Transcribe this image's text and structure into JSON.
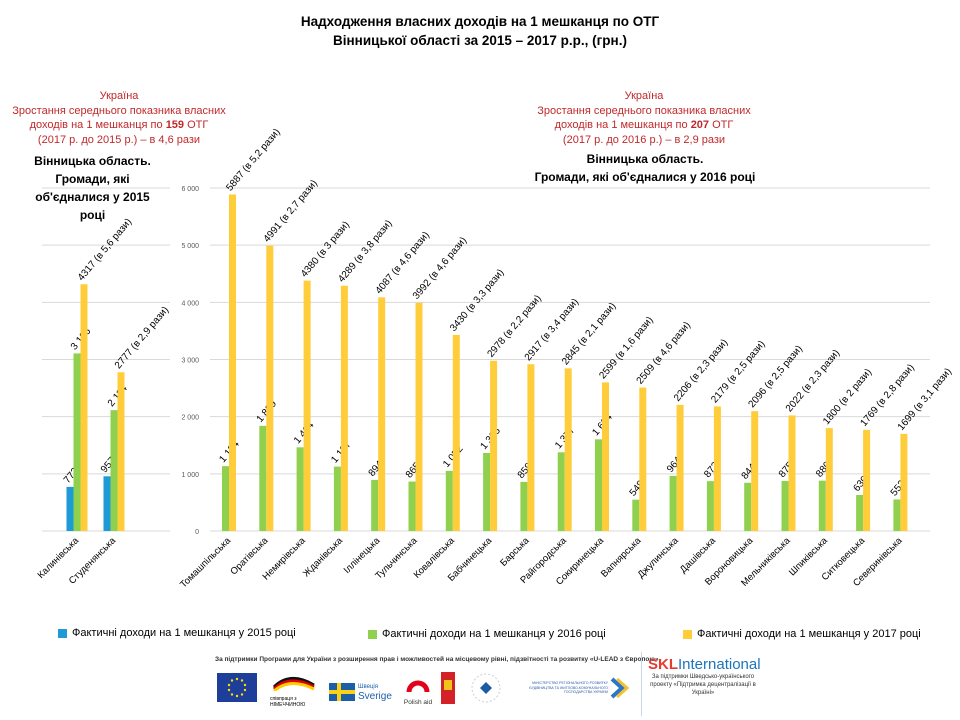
{
  "title": {
    "line1": "Надходження власних доходів на 1 мешканця по ОТГ",
    "line2": "Вінницької області за 2015 – 2017 р.р., (грн.)"
  },
  "notes": {
    "left": {
      "line1": "Україна",
      "line2": "Зростання середнього показника власних",
      "line3_pre": "доходів на 1 мешканця по ",
      "line3_bold": "159",
      "line3_post": " ОТГ",
      "line4": "(2017 р. до 2015 р.) – в 4,6 рази"
    },
    "right": {
      "line1": "Україна",
      "line2": "Зростання середнього показника власних",
      "line3_pre": "доходів на 1 мешканця по ",
      "line3_bold": "207",
      "line3_post": " ОТГ",
      "line4": "(2017 р. до 2016 р.) – в 2,9 рази"
    }
  },
  "subheads": {
    "left": [
      "Вінницька  область.",
      "Громади,  які",
      "об'єдналися  у 2015",
      "році"
    ],
    "right": [
      "Вінницька  область.",
      "Громади,  які  об'єдналися  у 2016 році"
    ]
  },
  "legend": [
    {
      "label": "Фактичні доходи на 1 мешканця у 2015 році",
      "color": "#1e9ad6"
    },
    {
      "label": "Фактичні доходи на 1 мешканця у 2016 році",
      "color": "#8fd14f"
    },
    {
      "label": "Фактичні доходи на 1 мешканця у 2017 році",
      "color": "#ffcd3a"
    }
  ],
  "footer": {
    "support_text": "За підтримки Програми для України з розширення прав і можливостей на місцевому рівні, підзвітності та розвитку «U-LEAD з Європою»",
    "logos": [
      "EU flag",
      "співпраця з Німеччиною",
      "Швеція Sverige",
      "Polish aid",
      "Coat of arms",
      "Estonia",
      "Міністерство регіонального розвитку, будівництва та житлово-комунального господарства України"
    ],
    "polish_aid": "Polish aid",
    "sverige": "Sverige",
    "shvetsiia": "Швеція",
    "germany": "співпраця з НІМЕЧЧИНОЮ",
    "ministry": "МІНІСТЕРСТВО РЕГІОНАЛЬНОГО РОЗВИТКУ БУДІВНИЦТВА ТА ЖИТЛОВО-КОМУНАЛЬНОГО ГОСПОДАРСТВА УКРАЇНИ",
    "skl_a": "SKL",
    "skl_b": "International",
    "skl_sub": "За підтримки Шведсько-українського проекту «Підтримка децентралізації в Україні»"
  },
  "chart_data": [
    {
      "type": "bar",
      "title": "Вінницька область. Громади, які об'єдналися у 2015 році",
      "categories": [
        "Калинівська",
        "Студенянська"
      ],
      "series": [
        {
          "name": "Фактичні доходи на 1 мешканця у 2015 році",
          "color": "#1e9ad6",
          "values": [
            772,
            957
          ],
          "labels": [
            "772",
            "957"
          ]
        },
        {
          "name": "Фактичні доходи на 1 мешканця у 2016 році",
          "color": "#8fd14f",
          "values": [
            3106,
            2114
          ],
          "labels": [
            "3 106",
            "2 114"
          ]
        },
        {
          "name": "Фактичні доходи на 1 мешканця у 2017 році",
          "color": "#ffcd3a",
          "values": [
            4317,
            2777
          ],
          "labels": [
            "4317 (в 5,6 рази)",
            "2777 (в 2,9 рази)"
          ]
        }
      ],
      "ylim": [
        0,
        6000
      ],
      "grid": true
    },
    {
      "type": "bar",
      "title": "Вінницька область. Громади, які об'єдналися у 2016 році",
      "categories": [
        "Томашпільська",
        "Оратівська",
        "Немирівська",
        "Жданівська",
        "Іллінецька",
        "Тульчинська",
        "Ковалівська",
        "Бабчинецька",
        "Барська",
        "Райгородська",
        "Сокиринецька",
        "Вапнярська",
        "Джулинська",
        "Дашівська",
        "Вороновицька",
        "Мельниківська",
        "Шпиківська",
        "Ситковецька",
        "Северинівська"
      ],
      "series": [
        {
          "name": "Фактичні доходи на 1 мешканця у 2016 році",
          "color": "#8fd14f",
          "values": [
            1134,
            1839,
            1464,
            1127,
            894,
            865,
            1052,
            1365,
            859,
            1377,
            1604,
            548,
            964,
            872,
            844,
            875,
            880,
            630,
            552
          ],
          "labels": [
            "1 134",
            "1 839",
            "1 464",
            "1 127",
            "894",
            "865",
            "1 052",
            "1 365",
            "859",
            "1 377",
            "1 604",
            "548",
            "964",
            "872",
            "844",
            "875",
            "880",
            "630",
            "552"
          ]
        },
        {
          "name": "Фактичні доходи на 1 мешканця у 2017 році",
          "color": "#ffcd3a",
          "values": [
            5887,
            4991,
            4380,
            4289,
            4087,
            3992,
            3430,
            2978,
            2917,
            2845,
            2599,
            2509,
            2206,
            2179,
            2096,
            2022,
            1800,
            1769,
            1699
          ],
          "labels": [
            "5887 (в 5,2 рази)",
            "4991 (в 2,7 рази)",
            "4380 (в 3 рази)",
            "4289 (в 3,8 рази)",
            "4087 (в 4,6 рази)",
            "3992 (в 4,6 рази)",
            "3430 (в 3,3 рази)",
            "2978 (в 2,2 рази)",
            "2917 (в 3,4 рази)",
            "2845 (в 2,1 рази)",
            "2599 (в 1,6 рази)",
            "2509 (в 4,6 рази)",
            "2206 (в 2,3 рази)",
            "2179 (в 2,5 рази)",
            "2096 (в 2,5 рази)",
            "2022 (в 2,3 рази)",
            "1800 (в 2 рази)",
            "1769 (в 2,8 рази)",
            "1699 (в 3,1 рази)"
          ]
        }
      ],
      "yticks": [
        "0",
        "1 000",
        "2 000",
        "3 000",
        "4 000",
        "5 000",
        "6 000"
      ],
      "ylim": [
        0,
        6000
      ],
      "grid": true
    }
  ]
}
